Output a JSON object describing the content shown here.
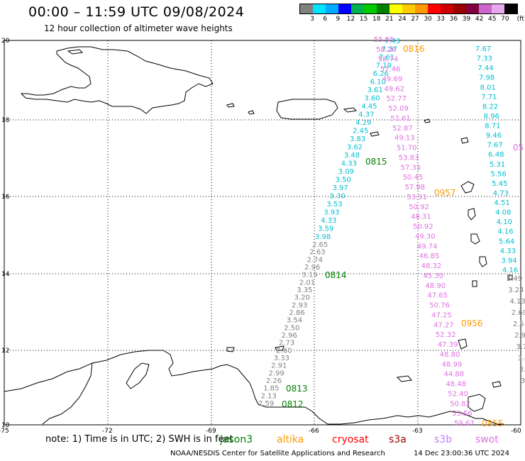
{
  "header": {
    "title": "00:00 – 11:59 UTC 09/08/2024",
    "subtitle": "12 hour collection of altimeter wave heights"
  },
  "legend": {
    "unit": "(ft)",
    "colors": [
      "#808080",
      "#00e5ff",
      "#00aaff",
      "#0000ff",
      "#00b050",
      "#00cc00",
      "#008000",
      "#ffff00",
      "#ffcc00",
      "#ff9900",
      "#ff0000",
      "#cc0000",
      "#990000",
      "#800040",
      "#cc66cc",
      "#e8a8f0",
      "#000000"
    ],
    "ticks": [
      "3",
      "6",
      "9",
      "12",
      "15",
      "18",
      "21",
      "24",
      "27",
      "30",
      "33",
      "36",
      "39",
      "42",
      "45",
      "70"
    ]
  },
  "axes": {
    "lat_labels": [
      "20",
      "18",
      "16",
      "14",
      "12",
      "10"
    ],
    "lon_labels": [
      "-75",
      "-72",
      "-69",
      "-66",
      "-63",
      "-60"
    ]
  },
  "tracks": {
    "t0815": {
      "color": "#00bfd0",
      "time": "0815",
      "time_color": "#008000",
      "values": [
        "7.43",
        "7.37",
        "7.61",
        "7.19",
        "6.26",
        "6.10",
        "3.61",
        "3.60",
        "4.45",
        "4.37",
        "4.29",
        "2.45",
        "3.83",
        "3.62",
        "3.48",
        "4.33",
        "3.09",
        "3.50",
        "3.97",
        "3.30",
        "3.53",
        "3.93",
        "4.33",
        "3.59",
        "3.98"
      ]
    },
    "t0814": {
      "color": "#808080",
      "time": "0814",
      "time_color": "#008000",
      "values": [
        "2.65",
        "2.63",
        "2.74",
        "2.96",
        "3.19",
        "2.01",
        "3.35",
        "3.20",
        "2.93",
        "2.86",
        "3.54",
        "2.50",
        "2.96",
        "2.73",
        "2.60",
        "3.33",
        "2.91",
        "2.99",
        "2.26",
        "1.85",
        "2.13",
        "2.59"
      ]
    },
    "t0813": {
      "time": "0813",
      "time_color": "#008000"
    },
    "t0812": {
      "time": "0812",
      "time_color": "#008000"
    },
    "t0816": {
      "color": "#e070e0",
      "time": "0816",
      "time_color": "#ff9900",
      "values": [
        "55.55",
        "58.26",
        "58.74",
        "57.46",
        "49.69",
        "49.62",
        "52.77",
        "52.09",
        "52.61",
        "52.87",
        "49.13",
        "51.70",
        "53.83",
        "57.35",
        "50.45",
        "57.98",
        "53.91",
        "50.92",
        "48.31",
        "50.92",
        "49.30",
        "49.74",
        "46.85",
        "48.32",
        "45.30",
        "48.90",
        "47.65",
        "50.76",
        "47.25",
        "47.27",
        "52.32",
        "47.39",
        "48.80",
        "48.99",
        "44.88",
        "48.48",
        "52.40",
        "50.82",
        "53.56",
        "59.67"
      ]
    },
    "t0957": {
      "color": "#00bfd0",
      "time": "0957",
      "time_color": "#ff9900",
      "values": [
        "7.67",
        "7.33",
        "7.44",
        "7.98",
        "8.01",
        "7.71",
        "8.22",
        "8.96",
        "8.71",
        "9.46",
        "7.67",
        "6.48",
        "5.31",
        "5.56",
        "5.45",
        "4.73",
        "4.51",
        "4.08",
        "4.10",
        "4.16",
        "5.64",
        "4.33",
        "3.94",
        "4.16"
      ]
    },
    "t0956": {
      "color": "#808080",
      "time": "0956",
      "time_color": "#ff9900",
      "values": [
        "3.49",
        "3.24",
        "4.13",
        "2.69",
        "2.5",
        "2.9",
        "3.7",
        "3.4",
        "3.",
        "3"
      ]
    },
    "t0955": {
      "time": "0955",
      "time_color": "#ff9900"
    }
  },
  "edge_label": "05",
  "note": {
    "text": "note: 1) Time is in UTC; 2) SWH is in feet",
    "satellites": [
      {
        "name": "jason3",
        "color": "#008000"
      },
      {
        "name": "altika",
        "color": "#ff9900"
      },
      {
        "name": "cryosat",
        "color": "#ff0000"
      },
      {
        "name": "s3a",
        "color": "#990000"
      },
      {
        "name": "s3b",
        "color": "#c080f0"
      },
      {
        "name": "swot",
        "color": "#e070e0"
      }
    ]
  },
  "footer": {
    "credit": "NOAA/NESDIS Center for Satellite Applications and Research",
    "timestamp": "14 Dec 23:00:36 UTC 2024"
  }
}
